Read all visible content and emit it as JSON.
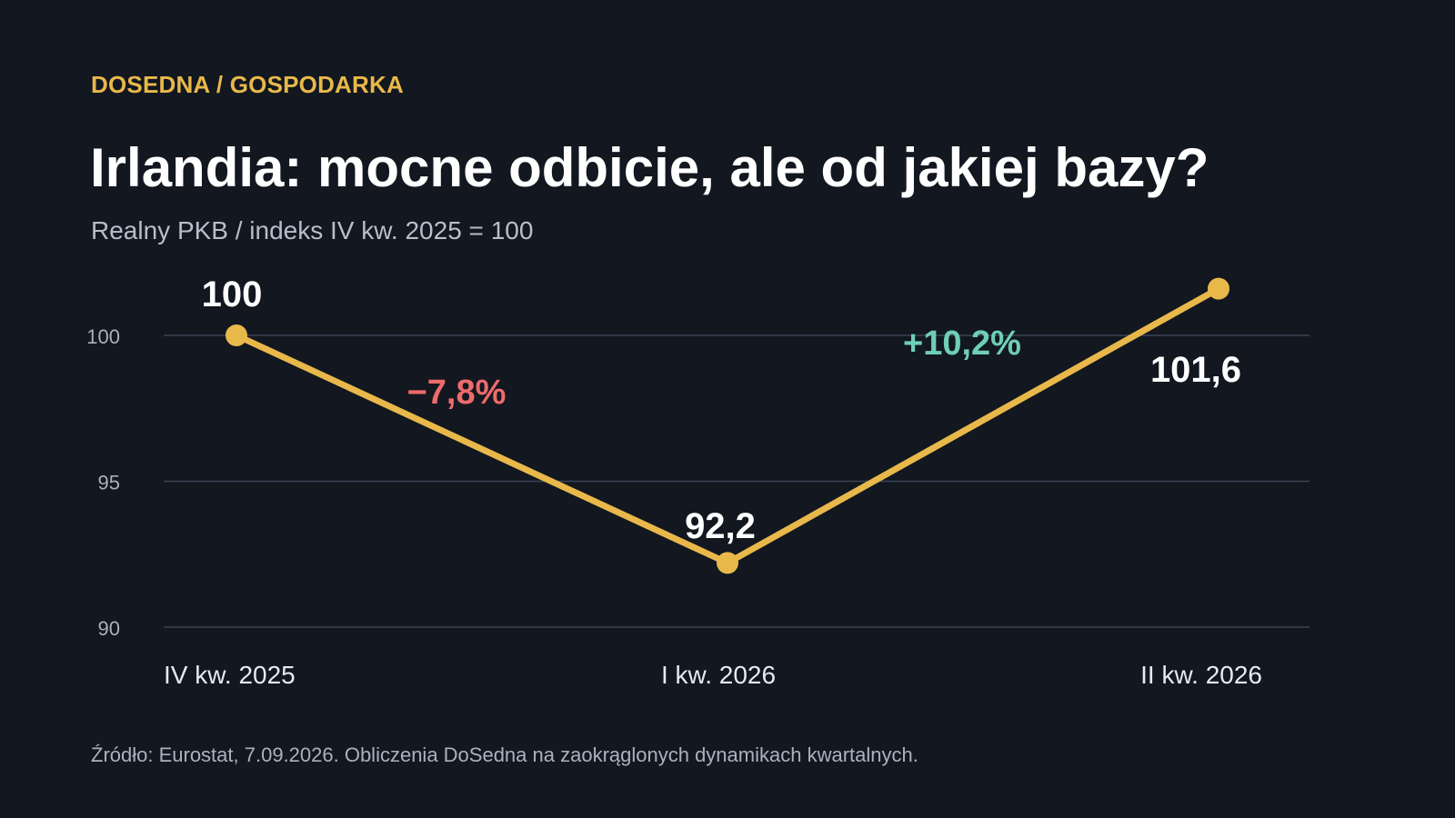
{
  "header": {
    "kicker": "DOSEDNA / GOSPODARKA",
    "title": "Irlandia: mocne odbicie, ale od jakiej bazy?",
    "subtitle": "Realny PKB / indeks IV kw. 2025 = 100"
  },
  "chart_data": {
    "type": "line",
    "categories": [
      "IV kw. 2025",
      "I kw. 2026",
      "II kw. 2026"
    ],
    "series": [
      {
        "values": [
          100,
          92.2,
          101.6
        ],
        "color": "#e8b84a"
      }
    ],
    "point_labels": [
      "100",
      "92,2",
      "101,6"
    ],
    "change_labels": [
      {
        "text": "−7,8%",
        "color": "#ee6b6b",
        "between": [
          0,
          1
        ]
      },
      {
        "text": "+10,2%",
        "color": "#6fcfb5",
        "between": [
          1,
          2
        ]
      }
    ],
    "yticks": [
      {
        "value": 90,
        "label": "90"
      },
      {
        "value": 95,
        "label": "95"
      },
      {
        "value": 100,
        "label": "100"
      }
    ],
    "ylim": [
      90,
      101.6
    ],
    "grid": true
  },
  "footer": {
    "source": "Źródło: Eurostat, 7.09.2026. Obliczenia DoSedna na zaokrąglonych dynamikach kwartalnych."
  }
}
